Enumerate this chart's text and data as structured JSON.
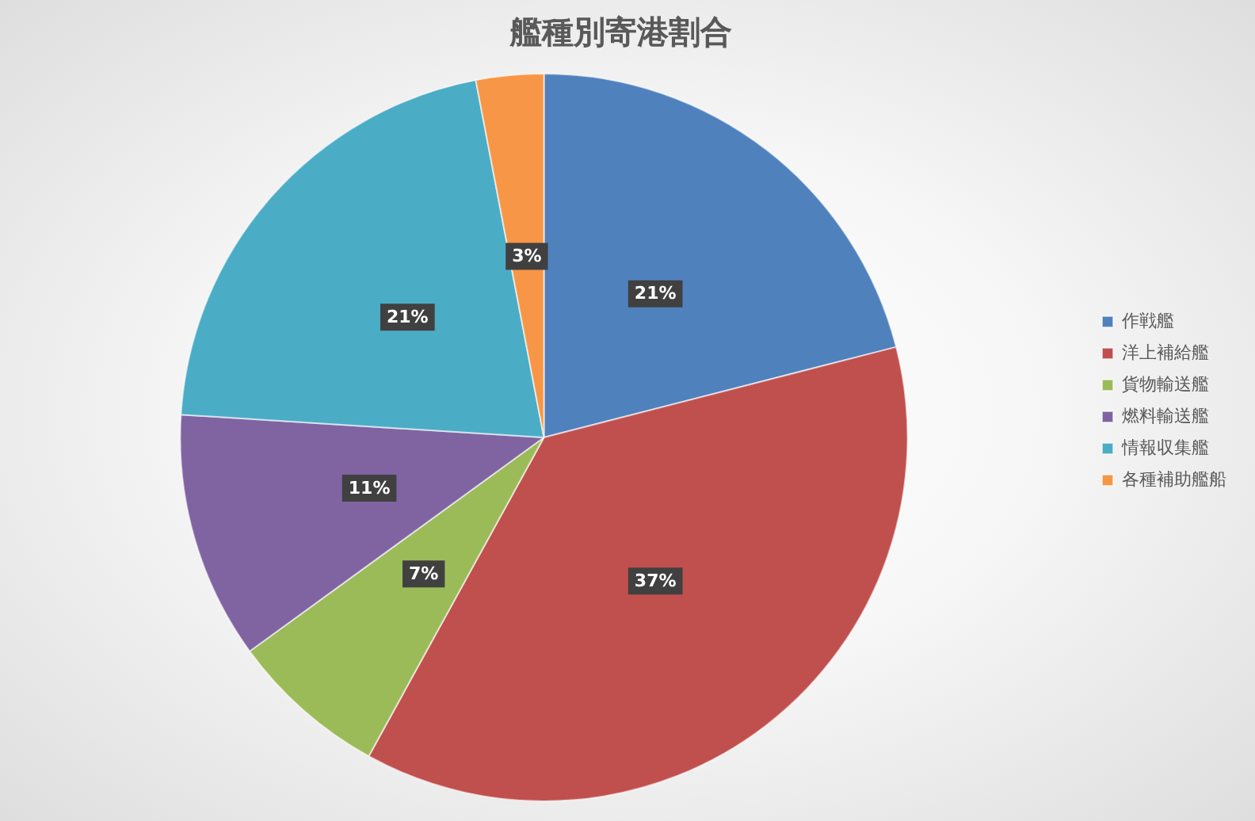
{
  "chart_data": {
    "type": "pie",
    "title": "艦種別寄港割合",
    "categories": [
      "作戦艦",
      "洋上補給艦",
      "貨物輸送艦",
      "燃料輸送艦",
      "情報収集艦",
      "各種補助艦船"
    ],
    "values": [
      21,
      37,
      7,
      11,
      21,
      3
    ],
    "colors": [
      "#4f81bd",
      "#c0504d",
      "#9bbb59",
      "#8064a2",
      "#4bacc6",
      "#f79646"
    ],
    "value_labels": [
      "21%",
      "37%",
      "7%",
      "11%",
      "21%",
      "3%"
    ],
    "legend": "right"
  }
}
